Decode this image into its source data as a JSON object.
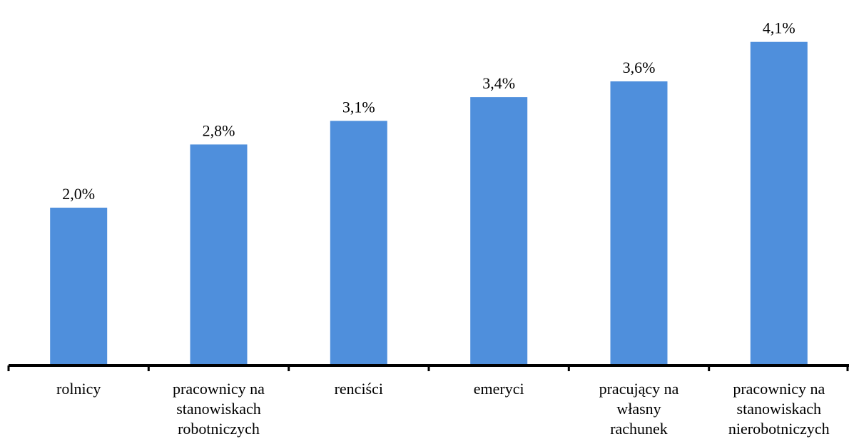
{
  "chart_data": {
    "type": "bar",
    "categories": [
      [
        "rolnicy"
      ],
      [
        "pracownicy na",
        "stanowiskach",
        "robotniczych"
      ],
      [
        "renciści"
      ],
      [
        "emeryci"
      ],
      [
        "pracujący na",
        "własny",
        "rachunek"
      ],
      [
        "pracownicy na",
        "stanowiskach",
        "nierobotniczych"
      ]
    ],
    "values": [
      2.0,
      2.8,
      3.1,
      3.4,
      3.6,
      4.1
    ],
    "value_labels": [
      "2,0%",
      "2,8%",
      "3,1%",
      "3,4%",
      "3,6%",
      "4,1%"
    ],
    "title": "",
    "xlabel": "",
    "ylabel": "",
    "ylim": [
      0,
      4.45
    ],
    "grid": false,
    "bar_color": "#4f8fdc",
    "axis_color": "#000000"
  }
}
